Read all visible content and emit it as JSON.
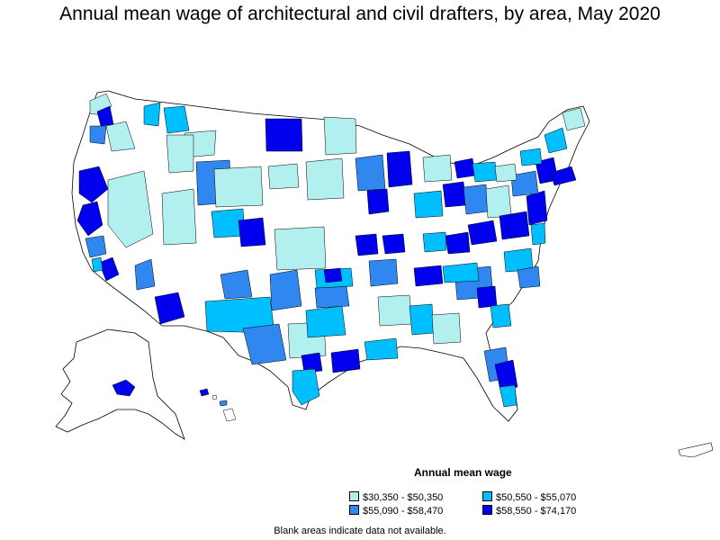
{
  "title": "Annual mean wage of architectural and civil drafters, by area, May 2020",
  "legend": {
    "title": "Annual mean wage",
    "items": [
      {
        "label": "$30,350 - $50,350",
        "color": "#b2f0f0"
      },
      {
        "label": "$50,550 - $55,070",
        "color": "#00bfff"
      },
      {
        "label": "$55,090 - $58,470",
        "color": "#2f87ef"
      },
      {
        "label": "$58,550 - $74,170",
        "color": "#0000ee"
      }
    ]
  },
  "note": "Blank areas indicate data not available.",
  "colors": {
    "blank": "#ffffff",
    "border": "#000000"
  }
}
